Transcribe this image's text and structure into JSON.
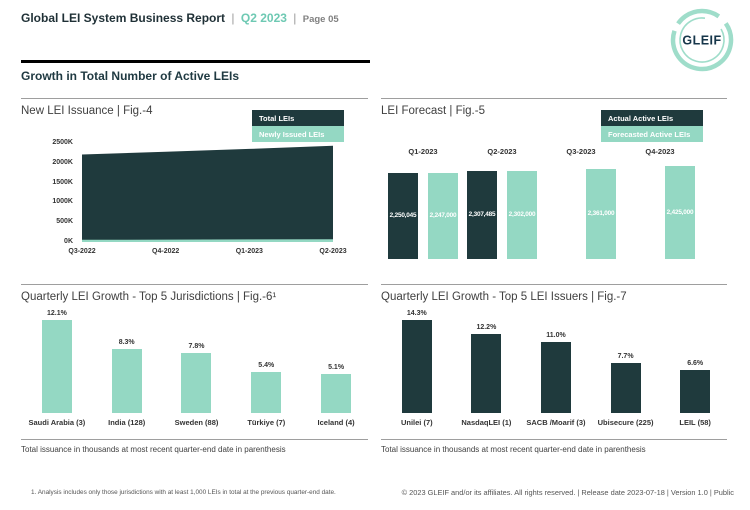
{
  "header": {
    "title": "Global LEI System Business Report",
    "separator": "|",
    "period": "Q2 2023",
    "page": "Page 05",
    "logo_text": "GLEIF"
  },
  "section": {
    "title": "Growth in Total Number of Active LEIs"
  },
  "colors": {
    "dark": "#1f3a3d",
    "mint": "#94d8c3",
    "accent": "#6ec9b3",
    "logo_ring": "#9fddca",
    "logo_text": "#16364a"
  },
  "panels": {
    "fig4": {
      "title": "New LEI Issuance | Fig.-4",
      "legend": [
        {
          "label": "Total LEIs",
          "color": "dark"
        },
        {
          "label": "Newly Issued LEIs",
          "color": "mint"
        }
      ]
    },
    "fig5": {
      "title": "LEI Forecast | Fig.-5",
      "legend": [
        {
          "label": "Actual Active LEIs",
          "color": "dark"
        },
        {
          "label": "Forecasted Active LEIs",
          "color": "mint"
        }
      ]
    },
    "fig6": {
      "title": "Quarterly LEI Growth - Top 5 Jurisdictions | Fig.-6¹",
      "note": "Total issuance in thousands at most recent quarter-end date in parenthesis"
    },
    "fig7": {
      "title": "Quarterly LEI Growth - Top 5 LEI Issuers | Fig.-7",
      "note": "Total issuance in thousands at most recent quarter-end date in parenthesis"
    }
  },
  "chart_data": [
    {
      "id": "fig4",
      "type": "area",
      "title": "New LEI Issuance",
      "x": [
        "Q3-2022",
        "Q4-2022",
        "Q1-2023",
        "Q2-2023"
      ],
      "series": [
        {
          "name": "Total LEIs",
          "values_thousands": [
            2210,
            2280,
            2350,
            2430
          ]
        },
        {
          "name": "Newly Issued LEIs",
          "values_thousands": [
            55,
            60,
            65,
            70
          ]
        }
      ],
      "ylabel": "",
      "xlabel": "",
      "ylim_thousands": [
        0,
        2500
      ],
      "yticks": [
        "0K",
        "500K",
        "1000K",
        "1500K",
        "2000K",
        "2500K"
      ],
      "grid": false,
      "legend_position": "top-right"
    },
    {
      "id": "fig5",
      "type": "bar",
      "title": "LEI Forecast",
      "categories": [
        "Q1-2023",
        "Q2-2023",
        "Q3-2023",
        "Q4-2023"
      ],
      "series": [
        {
          "name": "Actual Active LEIs",
          "color": "dark",
          "values": [
            2250045,
            2307485,
            null,
            null
          ],
          "labels": [
            "2,250,045",
            "2,307,485",
            "",
            ""
          ]
        },
        {
          "name": "Forecasted Active LEIs",
          "color": "mint",
          "values": [
            2247000,
            2302000,
            2361000,
            2425000
          ],
          "labels": [
            "2,247,000",
            "2,302,000",
            "2,361,000",
            "2,425,000"
          ]
        }
      ],
      "grid": false,
      "legend_position": "top-right",
      "category_labels_position": "above-bars"
    },
    {
      "id": "fig6",
      "type": "bar",
      "title": "Quarterly LEI Growth - Top 5 Jurisdictions",
      "categories": [
        "Saudi Arabia (3)",
        "India (128)",
        "Sweden (88)",
        "Türkiye (7)",
        "Iceland (4)"
      ],
      "values": [
        12.1,
        8.3,
        7.8,
        5.4,
        5.1
      ],
      "labels": [
        "12.1%",
        "8.3%",
        "7.8%",
        "5.4%",
        "5.1%"
      ],
      "color": "mint",
      "grid": false
    },
    {
      "id": "fig7",
      "type": "bar",
      "title": "Quarterly LEI Growth - Top 5 LEI Issuers",
      "categories": [
        "Unilei (7)",
        "NasdaqLEI (1)",
        "SACB /Moarif (3)",
        "Ubisecure (225)",
        "LEIL (58)"
      ],
      "values": [
        14.3,
        12.2,
        11.0,
        7.7,
        6.6
      ],
      "labels": [
        "14.3%",
        "12.2%",
        "11.0%",
        "7.7%",
        "6.6%"
      ],
      "color": "dark",
      "grid": false
    }
  ],
  "footnote": "1. Analysis includes only those jurisdictions with at least 1,000 LEIs in total at the previous quarter-end date.",
  "copyright": "© 2023 GLEIF and/or its affiliates. All rights reserved. | Release date 2023-07-18 | Version 1.0 | Public"
}
